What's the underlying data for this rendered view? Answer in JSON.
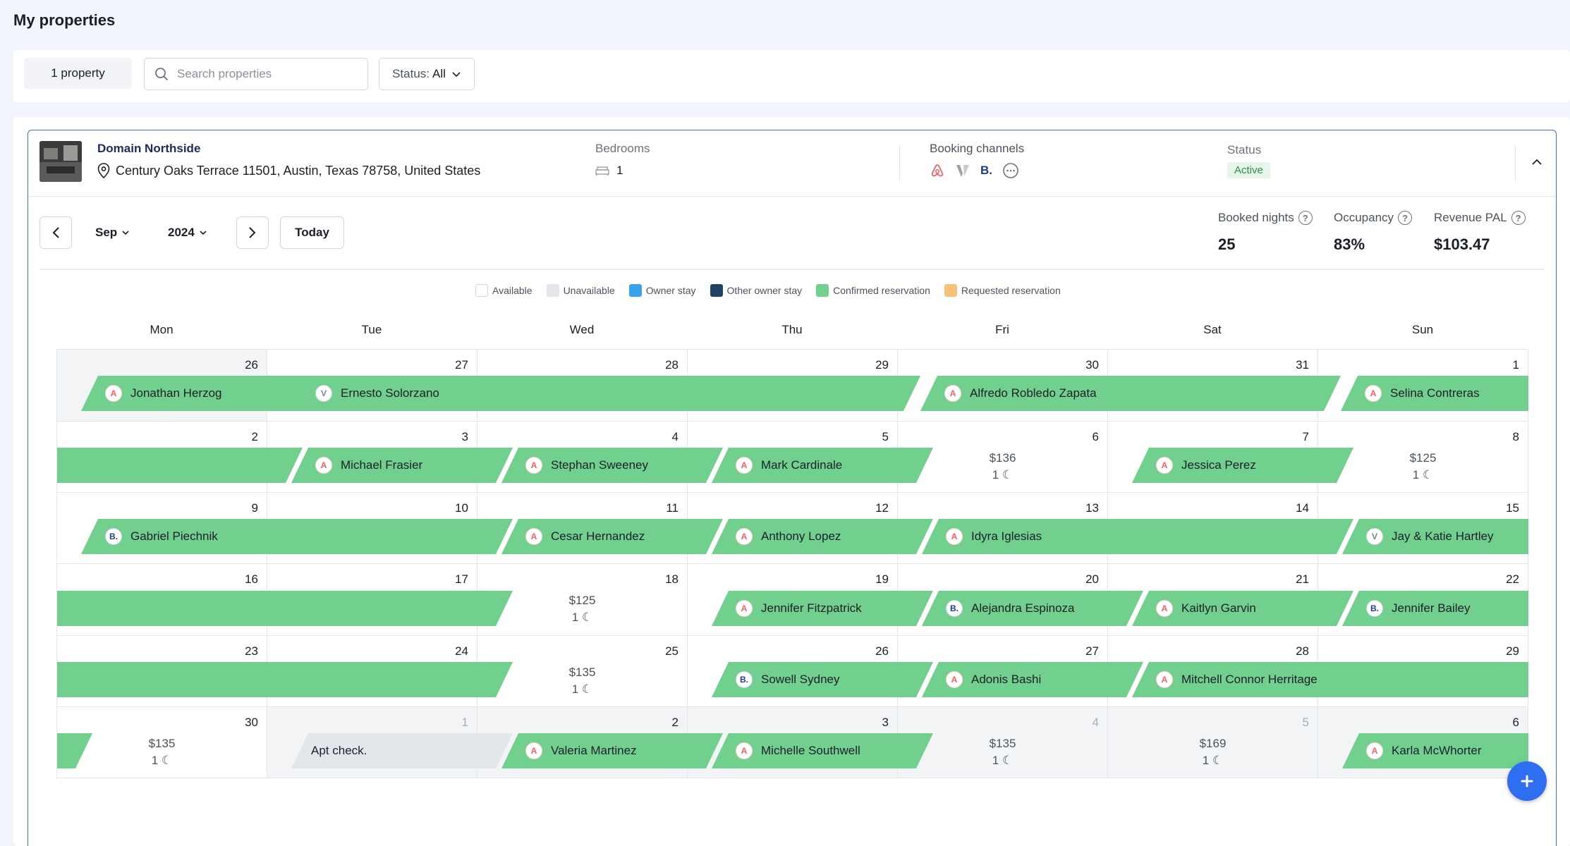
{
  "page": {
    "title": "My properties"
  },
  "toolbar": {
    "property_count": "1 property",
    "search_placeholder": "Search properties",
    "status_label": "Status:",
    "status_value": "All"
  },
  "property": {
    "name": "Domain Northside",
    "address": "Century Oaks Terrace 11501, Austin, Texas 78758, United States",
    "bedrooms_label": "Bedrooms",
    "bedrooms_value": "1",
    "channels_label": "Booking channels",
    "status_label": "Status",
    "status_value": "Active",
    "channels": [
      "airbnb-icon",
      "vrbo-icon",
      "booking-icon",
      "other-channel-icon"
    ]
  },
  "calendar": {
    "month": "Sep",
    "year": "2024",
    "today_label": "Today",
    "weekdays": [
      "Mon",
      "Tue",
      "Wed",
      "Thu",
      "Fri",
      "Sat",
      "Sun"
    ],
    "legend": [
      {
        "label": "Available",
        "color": "#ffffff"
      },
      {
        "label": "Unavailable",
        "color": "#e3e7ec"
      },
      {
        "label": "Owner stay",
        "color": "#3aa2e8"
      },
      {
        "label": "Other owner stay",
        "color": "#1f4468"
      },
      {
        "label": "Confirmed reservation",
        "color": "#72d08e"
      },
      {
        "label": "Requested reservation",
        "color": "#f5c27a"
      }
    ],
    "prices": {
      "w1_fri": "$136",
      "w1_sun": "$125",
      "w3_wed": "$125",
      "w4_wed": "$135",
      "w5_mon": "$135",
      "w5_fri": "$135",
      "w5_sat": "$169"
    },
    "nights": "1",
    "reservations": {
      "jonathan": "Jonathan Herzog",
      "ernesto": "Ernesto Solorzano",
      "alfredo": "Alfredo Robledo Zapata",
      "selina": "Selina Contreras",
      "michael": "Michael Frasier",
      "stephan": "Stephan Sweeney",
      "mark": "Mark Cardinale",
      "jessica": "Jessica Perez",
      "gabriel": "Gabriel Piechnik",
      "cesar": "Cesar Hernandez",
      "anthony": "Anthony Lopez",
      "idyra": "Idyra Iglesias",
      "jay": "Jay & Katie Hartley",
      "jennifer_f": "Jennifer Fitzpatrick",
      "alejandra": "Alejandra Espinoza",
      "kaitlyn": "Kaitlyn Garvin",
      "jennifer_b": "Jennifer Bailey",
      "sowell": "Sowell Sydney",
      "adonis": "Adonis Bashi",
      "mitchell": "Mitchell Connor Herritage",
      "apt_check": "Apt check.",
      "valeria": "Valeria Martinez",
      "michelle": "Michelle Southwell",
      "karla": "Karla McWhorter"
    }
  },
  "stats": {
    "booked_label": "Booked nights",
    "booked_value": "25",
    "occupancy_label": "Occupancy",
    "occupancy_value": "83%",
    "revenue_label": "Revenue PAL",
    "revenue_value": "$103.47"
  }
}
